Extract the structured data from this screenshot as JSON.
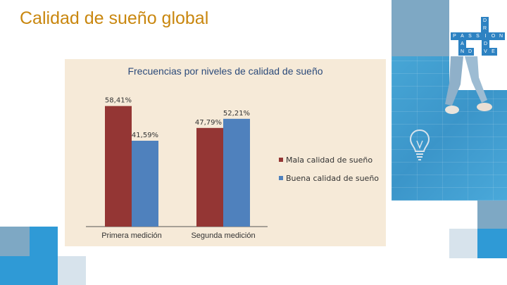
{
  "slide": {
    "title": "Calidad de sueño global"
  },
  "logo": {
    "rows": [
      {
        "letters": [
          "D"
        ]
      },
      {
        "letters": [
          "R"
        ]
      },
      {
        "letters": [
          "P",
          "A",
          "S",
          "S",
          "I",
          "O",
          "N"
        ]
      },
      {
        "letters": [
          "A",
          "N",
          "D"
        ]
      },
      {
        "letters": [
          "D",
          "V",
          "E"
        ]
      }
    ]
  },
  "icons": {
    "bulb": "lightbulb-icon",
    "logo": "drive-passion-logo"
  },
  "colors": {
    "title": "#c9870f",
    "series_bad": "#943634",
    "series_good": "#4f81bd",
    "panel": "#f6ead8"
  },
  "chart_data": {
    "type": "bar",
    "title": "Frecuencias por niveles de calidad de sueño",
    "categories": [
      "Primera medición",
      "Segunda medición"
    ],
    "series": [
      {
        "name": "Mala calidad de sueño",
        "values": [
          58.41,
          47.79
        ],
        "labels": [
          "58,41%",
          "47,79%"
        ],
        "color": "#943634"
      },
      {
        "name": "Buena calidad de sueño",
        "values": [
          41.59,
          52.21
        ],
        "labels": [
          "41,59%",
          "52,21%"
        ],
        "color": "#4f81bd"
      }
    ],
    "ylim": [
      0,
      60
    ],
    "grid": false,
    "legend": "right"
  }
}
